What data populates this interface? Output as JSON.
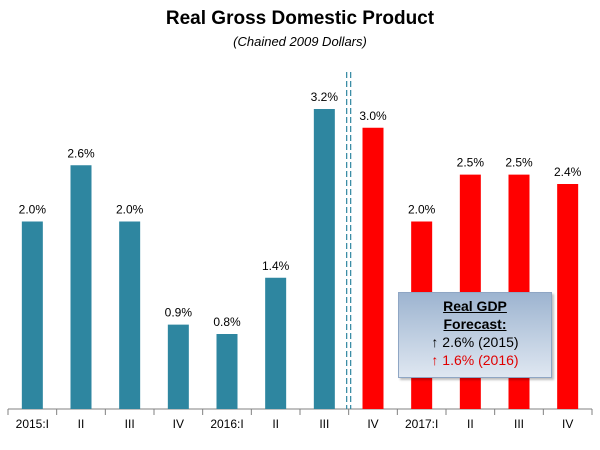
{
  "chart_data": {
    "type": "bar",
    "title": "Real Gross Domestic Product",
    "subtitle": "(Chained 2009 Dollars)",
    "categories": [
      "2015:I",
      "II",
      "III",
      "IV",
      "2016:I",
      "II",
      "III",
      "IV",
      "2017:I",
      "II",
      "III",
      "IV"
    ],
    "values": [
      2.0,
      2.6,
      2.0,
      0.9,
      0.8,
      1.4,
      3.2,
      3.0,
      2.0,
      2.5,
      2.5,
      2.4
    ],
    "value_labels": [
      "2.0%",
      "2.6%",
      "2.0%",
      "0.9%",
      "0.8%",
      "1.4%",
      "3.2%",
      "3.0%",
      "2.0%",
      "2.5%",
      "2.5%",
      "2.4%"
    ],
    "forecast_start_index": 7,
    "colors": {
      "actual": "#2e86a0",
      "forecast": "#ff0000",
      "divider": "#2e86a0"
    },
    "ylim": [
      0,
      3.6
    ],
    "grid": false,
    "legend": "none"
  },
  "forecast_box": {
    "title_line1": "Real GDP",
    "title_line2": "Forecast:",
    "line_2015": "↑ 2.6% (2015)",
    "line_2016": "↑ 1.6% (2016)"
  }
}
